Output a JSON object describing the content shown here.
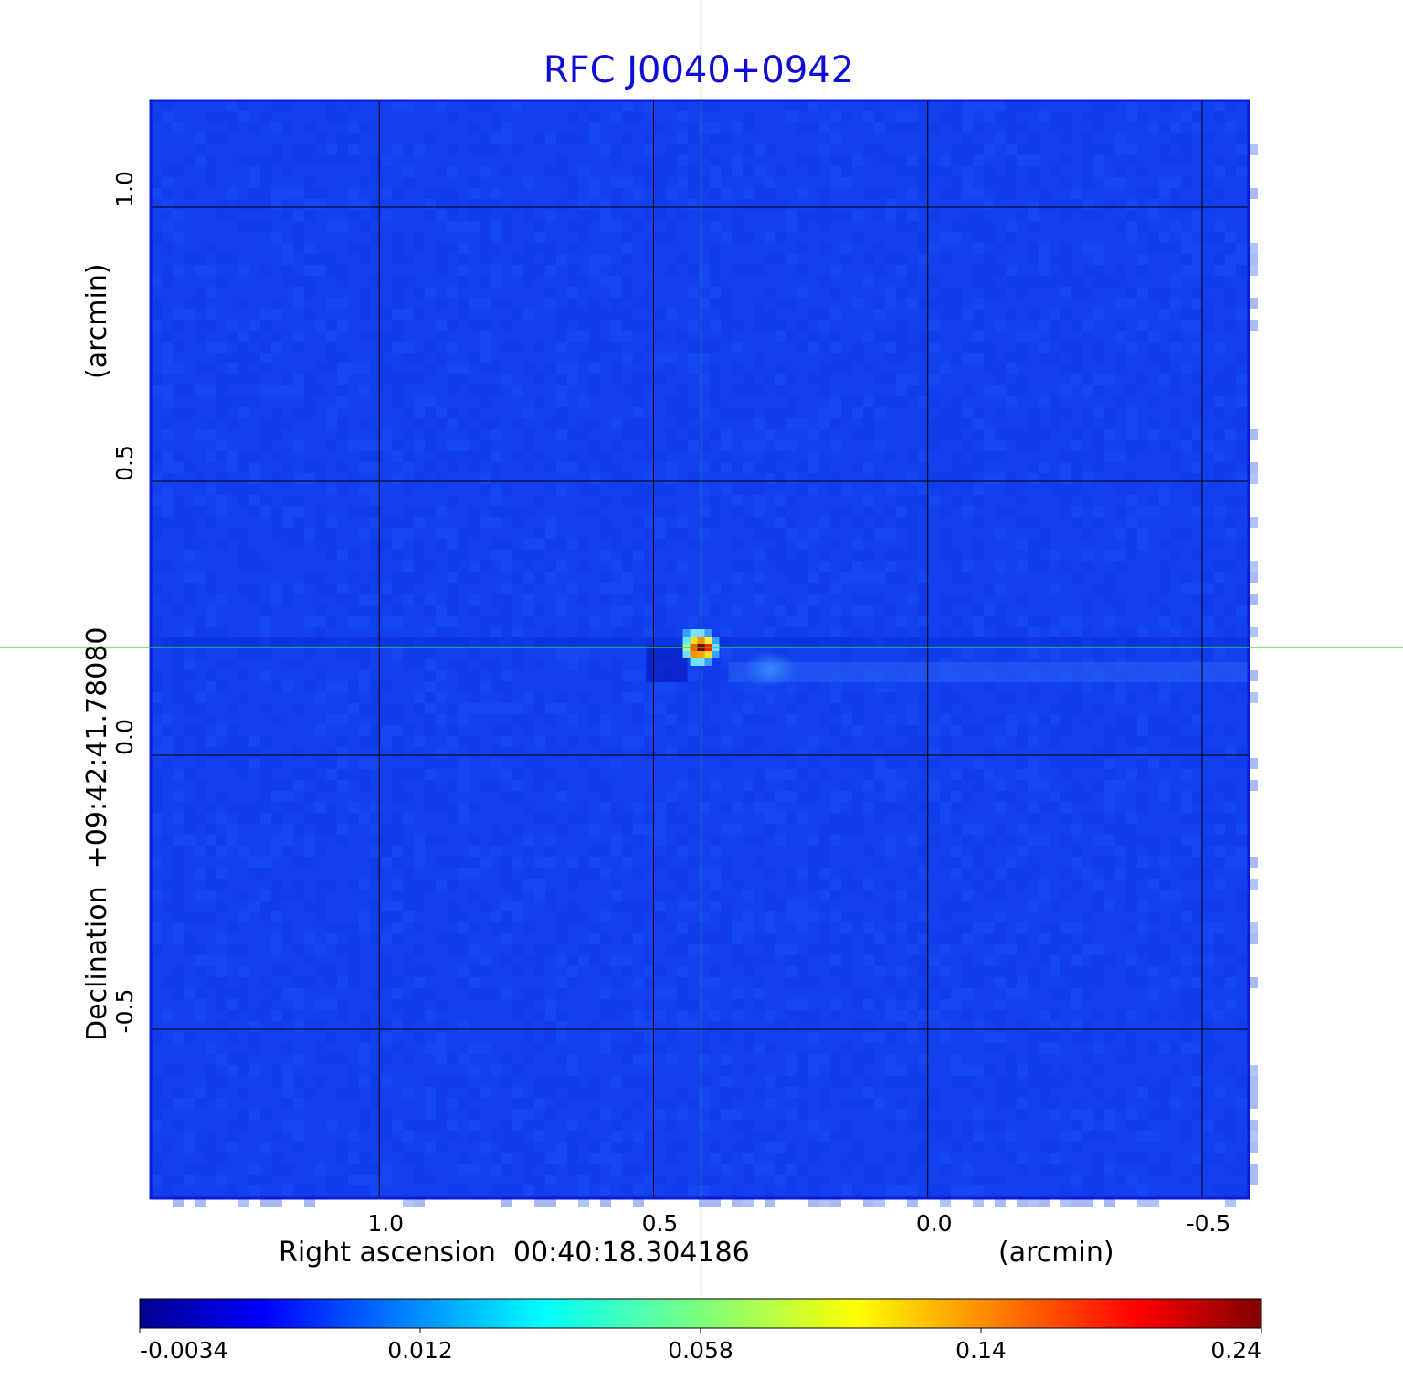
{
  "chart_data": {
    "type": "heatmap",
    "title": "RFC J0040+0942",
    "xlabel": "Right ascension  00:40:18.304186",
    "xunit": "(arcmin)",
    "ylabel": "Declination  +09:42:41.78080",
    "yunit": "(arcmin)",
    "xlim": [
      1.4167,
      -0.585
    ],
    "ylim": [
      -0.8083,
      1.195
    ],
    "x_ticks": [
      1.0,
      0.5,
      0.0,
      -0.5
    ],
    "x_tick_labels": [
      "1.0",
      "0.5",
      "0.0",
      "-0.5"
    ],
    "y_ticks": [
      1.0,
      0.5,
      0.0,
      -0.5
    ],
    "y_tick_labels": [
      "1.0",
      "0.5",
      "0.0",
      "-0.5"
    ],
    "grid": true,
    "crosshair": {
      "x": 0.4133,
      "y": 0.1967
    },
    "colorbar": {
      "colormap": "jet",
      "tick_values": [
        -0.0034,
        0.012,
        0.058,
        0.14,
        0.24
      ],
      "tick_labels": [
        "-0.0034",
        "0.012",
        "0.058",
        "0.14",
        "0.24"
      ],
      "placement": "bottom"
    },
    "peak": {
      "x": 0.4133,
      "y": 0.1967,
      "value": 0.24
    },
    "background_level": 0.005
  },
  "colors": {
    "title": "#0d0dd4",
    "grid": "#000000",
    "crosshair": "#22dd22",
    "frame": "#0a1ad8",
    "background": "#1240ee"
  }
}
